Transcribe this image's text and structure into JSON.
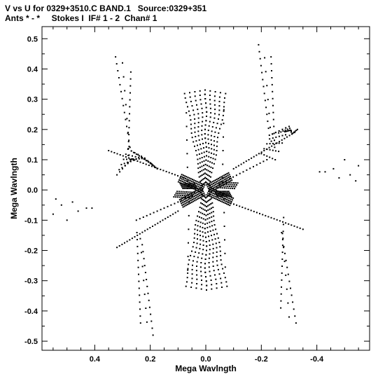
{
  "header": {
    "line1": "V vs U for 0329+3510.C BAND.1   Source:0329+351",
    "line2": "Ants * - *     Stokes I  IF# 1 - 2  Chan# 1"
  },
  "chart_data": {
    "type": "scatter",
    "xlabel": "Mega Wavlngth",
    "ylabel": "Mega Wavlngth",
    "xlim": [
      0.59,
      -0.59
    ],
    "ylim": [
      -0.53,
      0.54
    ],
    "x_reversed": true,
    "xticks": [
      0.4,
      0.2,
      0.0,
      -0.2,
      -0.4
    ],
    "xtick_labels": [
      "0.4",
      "0.2",
      "0.0",
      "-0.2",
      "-0.4"
    ],
    "yticks": [
      0.5,
      0.4,
      0.3,
      0.2,
      0.1,
      0.0,
      -0.1,
      -0.2,
      -0.3,
      -0.4,
      -0.5
    ],
    "ytick_labels": [
      "0.5",
      "0.4",
      "0.3",
      "0.2",
      "0.1",
      "0.0",
      "-0.1",
      "-0.2",
      "-0.3",
      "-0.4",
      "-0.5"
    ],
    "marker_color": "#000000",
    "arms": [
      {
        "arm": "north",
        "x1": 0.07,
        "y1": 0.34,
        "x2": 0.0,
        "y2": 0.31,
        "x3": -0.07,
        "y3": 0.34,
        "x_end": 0.0,
        "y_end": 0.0
      },
      {
        "arm": "south",
        "x1": 0.07,
        "y1": -0.34,
        "x2": 0.0,
        "y2": -0.37,
        "x3": -0.12,
        "y3": -0.34,
        "x_end": 0.0,
        "y_end": 0.0
      },
      {
        "arm": "upper-left-v",
        "x1": 0.33,
        "y1": 0.44,
        "x2": 0.26,
        "y2": 0.38,
        "x3": 0.25,
        "y3": 0.13,
        "x_end": 0.3,
        "y_end": 0.1
      },
      {
        "arm": "lower-right-v",
        "x1": -0.33,
        "y1": -0.44,
        "x2": -0.25,
        "y2": -0.38,
        "x3": -0.25,
        "y3": -0.13,
        "x_end": -0.3,
        "y_end": -0.1
      },
      {
        "arm": "upper-right-v",
        "x1": -0.18,
        "y1": 0.48,
        "x2": -0.24,
        "y2": 0.44,
        "x3": -0.23,
        "y3": 0.18,
        "x_end": -0.27,
        "y_end": 0.2
      },
      {
        "arm": "lower-left-v",
        "x1": 0.18,
        "y1": -0.48,
        "x2": 0.22,
        "y2": -0.46,
        "x3": 0.23,
        "y3": -0.18,
        "x_end": 0.27,
        "y_end": -0.2
      }
    ],
    "clusters": [
      {
        "name": "far-left",
        "points": [
          [
            0.55,
            -0.08
          ],
          [
            0.52,
            -0.05
          ],
          [
            0.5,
            -0.1
          ],
          [
            0.48,
            -0.04
          ],
          [
            0.46,
            -0.07
          ],
          [
            0.43,
            -0.06
          ],
          [
            0.41,
            -0.06
          ],
          [
            0.54,
            -0.03
          ]
        ]
      },
      {
        "name": "far-right",
        "points": [
          [
            -0.55,
            0.08
          ],
          [
            -0.52,
            0.05
          ],
          [
            -0.5,
            0.1
          ],
          [
            -0.48,
            0.04
          ],
          [
            -0.46,
            0.07
          ],
          [
            -0.43,
            0.06
          ],
          [
            -0.41,
            0.06
          ],
          [
            -0.54,
            0.03
          ]
        ]
      }
    ],
    "grid": false,
    "legend": "none"
  }
}
